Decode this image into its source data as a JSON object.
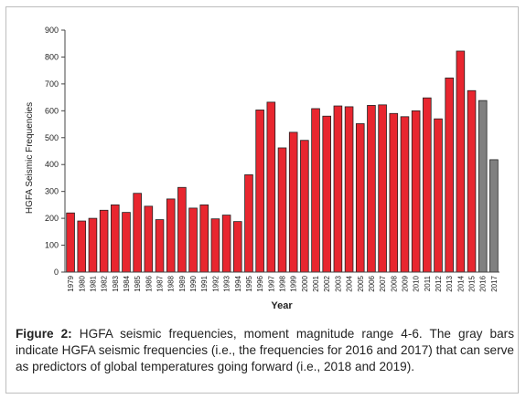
{
  "chart_data": {
    "type": "bar",
    "title": "",
    "xlabel": "Year",
    "ylabel": "HGFA Seismic Frequencies",
    "ylim": [
      0,
      900
    ],
    "yticks": [
      0,
      100,
      200,
      300,
      400,
      500,
      600,
      700,
      800,
      900
    ],
    "grid": false,
    "legend": "none",
    "categories": [
      "1979",
      "1980",
      "1981",
      "1982",
      "1983",
      "1984",
      "1985",
      "1986",
      "1987",
      "1988",
      "1989",
      "1990",
      "1991",
      "1992",
      "1993",
      "1994",
      "1995",
      "1996",
      "1997",
      "1998",
      "1999",
      "2000",
      "2001",
      "2002",
      "2003",
      "2004",
      "2005",
      "2006",
      "2007",
      "2008",
      "2009",
      "2010",
      "2011",
      "2012",
      "2013",
      "2014",
      "2015",
      "2016",
      "2017"
    ],
    "values": [
      220,
      190,
      200,
      230,
      250,
      222,
      293,
      245,
      195,
      272,
      315,
      238,
      250,
      198,
      212,
      188,
      362,
      603,
      632,
      462,
      520,
      490,
      608,
      580,
      618,
      615,
      552,
      620,
      622,
      590,
      578,
      600,
      648,
      570,
      722,
      822,
      675,
      638,
      418
    ],
    "colors": {
      "observed": "#e8262f",
      "predictor": "#808080",
      "outline": "#222222"
    },
    "predictor_categories": [
      "2016",
      "2017"
    ]
  },
  "caption": {
    "label": "Figure 2:",
    "text": " HGFA seismic frequencies, moment magnitude range 4-6. The gray bars indicate HGFA seismic frequencies (i.e., the frequencies for 2016 and 2017) that can serve as predictors of global temperatures going forward (i.e., 2018 and 2019)."
  }
}
